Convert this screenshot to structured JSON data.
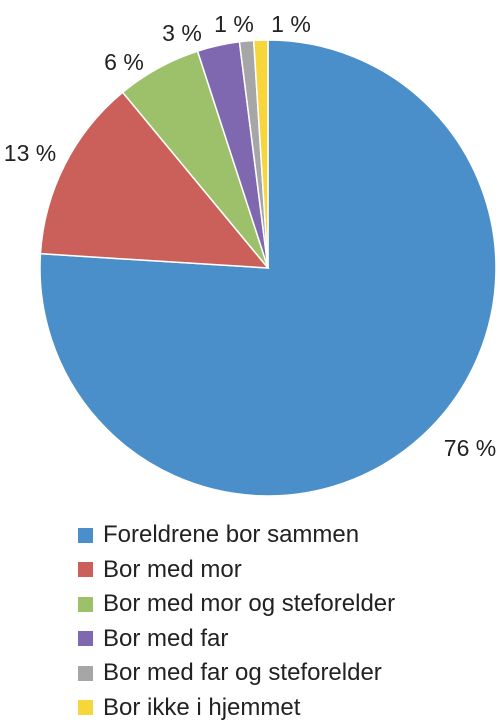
{
  "chart_data": {
    "type": "pie",
    "title": "",
    "categories": [
      "Foreldrene bor sammen",
      "Bor med mor",
      "Bor med mor og steforelder",
      "Bor med far",
      "Bor med far og steforelder",
      "Bor ikke i hjemmet"
    ],
    "values": [
      76,
      13,
      6,
      3,
      1,
      1
    ],
    "data_labels": [
      "76 %",
      "13 %",
      "6 %",
      "3 %",
      "1 %",
      "1 %"
    ],
    "colors": [
      "#4A8FC9",
      "#CB605A",
      "#9DC06A",
      "#7F68B0",
      "#A6A6A6",
      "#F7D63C"
    ],
    "legend_position": "bottom",
    "start_angle_deg": 0,
    "direction": "clockwise"
  }
}
